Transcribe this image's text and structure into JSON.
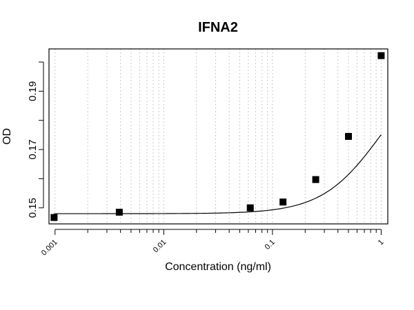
{
  "chart_data": {
    "type": "scatter",
    "title": "IFNA2",
    "xlabel": "Concentration (ng/ml)",
    "ylabel": "OD",
    "x_scale": "log",
    "xlim": [
      0.00088,
      1.15
    ],
    "ylim": [
      0.1445,
      0.2045
    ],
    "x_ticks": [
      0.001,
      0.01,
      0.1,
      1
    ],
    "x_tick_labels": [
      "0.001",
      "0.01",
      "0.1",
      "1"
    ],
    "y_ticks": [
      0.15,
      0.17,
      0.19
    ],
    "y_tick_labels": [
      "0.15",
      "0.17",
      "0.19"
    ],
    "grid": "vertical-dotted-log-minor",
    "series": [
      {
        "marker": "square",
        "fit": "smooth-curve",
        "color": "#000000",
        "points": [
          {
            "x": 0.00098,
            "y": 0.1467
          },
          {
            "x": 0.0039,
            "y": 0.1485
          },
          {
            "x": 0.0625,
            "y": 0.15
          },
          {
            "x": 0.125,
            "y": 0.152
          },
          {
            "x": 0.25,
            "y": 0.1597
          },
          {
            "x": 0.5,
            "y": 0.1745
          },
          {
            "x": 1.0,
            "y": 0.2022
          }
        ]
      }
    ],
    "fit_curve": {
      "bottom": 0.148,
      "top": 0.2022,
      "ec": 1.0,
      "hill": 1.6
    }
  }
}
